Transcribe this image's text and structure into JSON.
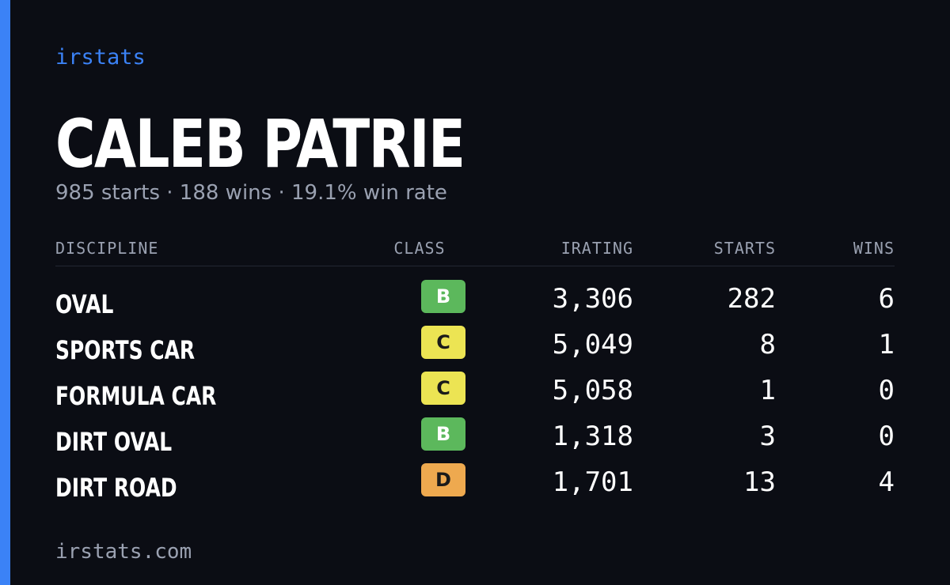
{
  "brand": "irstats",
  "driver": {
    "name": "CALEB PATRIE",
    "summary": "985 starts · 188 wins · 19.1% win rate"
  },
  "table": {
    "headers": {
      "discipline": "DISCIPLINE",
      "class": "CLASS",
      "irating": "IRATING",
      "starts": "STARTS",
      "wins": "WINS"
    },
    "rows": [
      {
        "discipline": "OVAL",
        "class": "B",
        "class_color": "#5cb85c",
        "irating": "3,306",
        "starts": "282",
        "wins": "6"
      },
      {
        "discipline": "SPORTS CAR",
        "class": "C",
        "class_color": "#ece453",
        "irating": "5,049",
        "starts": "8",
        "wins": "1"
      },
      {
        "discipline": "FORMULA CAR",
        "class": "C",
        "class_color": "#ece453",
        "irating": "5,058",
        "starts": "1",
        "wins": "0"
      },
      {
        "discipline": "DIRT OVAL",
        "class": "B",
        "class_color": "#5cb85c",
        "irating": "1,318",
        "starts": "3",
        "wins": "0"
      },
      {
        "discipline": "DIRT ROAD",
        "class": "D",
        "class_color": "#eea94f",
        "irating": "1,701",
        "starts": "13",
        "wins": "4"
      }
    ]
  },
  "footer": "irstats.com",
  "colors": {
    "background": "#0b0d14",
    "accent": "#3b82f6",
    "muted": "#9aa1b1"
  }
}
